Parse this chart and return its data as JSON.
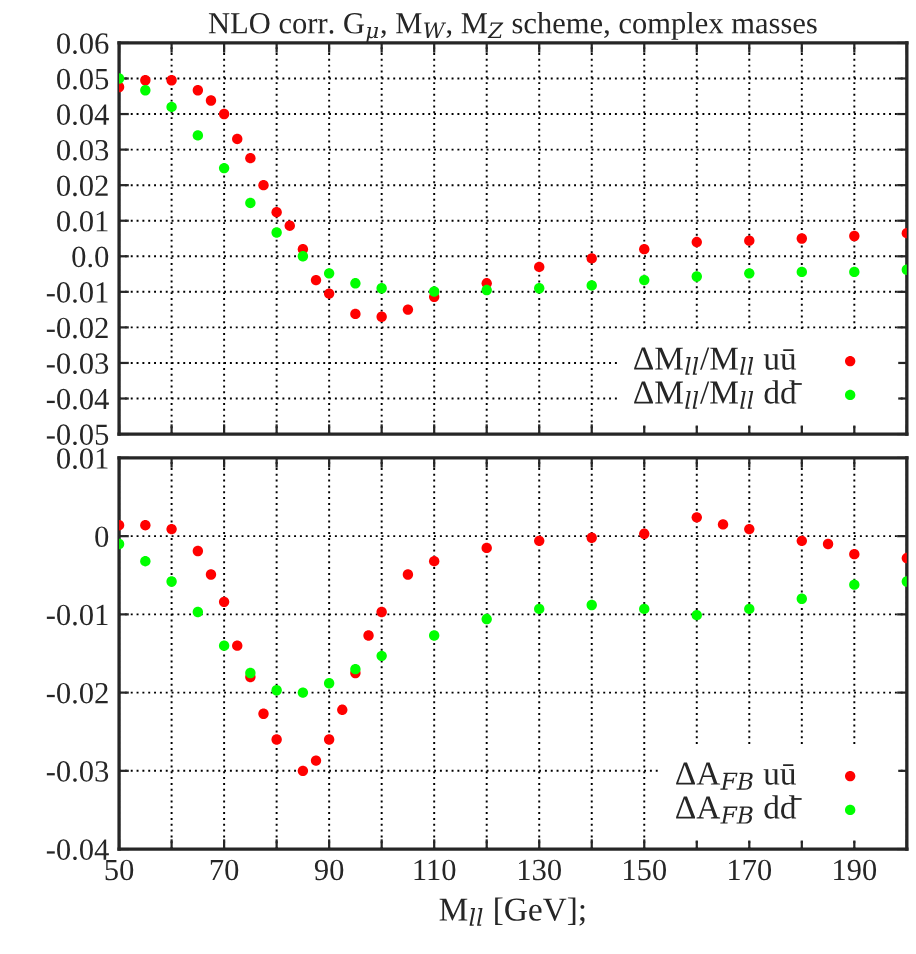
{
  "chart_data": [
    {
      "type": "scatter",
      "title": "NLO corr. G$_{μ}$, M$_{W}$, M$_{Z}$ scheme, complex masses",
      "marker": "circle",
      "grid": true,
      "legend": "bottom right",
      "tick_labels": "y",
      "xlim": [
        50,
        200
      ],
      "xticks": [
        50,
        {
          "value": 60,
          "label": null
        },
        70,
        {
          "value": 80,
          "label": null
        },
        90,
        {
          "value": 100,
          "label": null
        },
        110,
        {
          "value": 120,
          "label": null
        },
        130,
        {
          "value": 140,
          "label": null
        },
        150,
        {
          "value": 160,
          "label": null
        },
        170,
        {
          "value": 180,
          "label": null
        },
        190,
        {
          "value": 200,
          "label": null
        }
      ],
      "ylim": [
        -0.05,
        0.06
      ],
      "yticks": [
        -0.05,
        -0.04,
        -0.03,
        -0.02,
        -0.01,
        {
          "value": 0,
          "label": "0.0"
        },
        0.01,
        0.02,
        0.03,
        0.04,
        0.05,
        0.06
      ],
      "series": [
        {
          "name": "ΔM$_{ll}$/M$_{ll}$ uū",
          "color": "#ff0000",
          "x": [
            50,
            55,
            60,
            65,
            67.5,
            70,
            72.5,
            75,
            77.5,
            80,
            82.5,
            85,
            87.5,
            90,
            95,
            100,
            105,
            110,
            120,
            130,
            140,
            150,
            160,
            170,
            180,
            190,
            200
          ],
          "values": [
            0.0476,
            0.0495,
            0.0495,
            0.0467,
            0.0438,
            0.04,
            0.033,
            0.0276,
            0.02,
            0.0124,
            0.0086,
            0.002,
            -0.0067,
            -0.0105,
            -0.0162,
            -0.017,
            -0.015,
            -0.0114,
            -0.0076,
            -0.003,
            -0.0006,
            0.002,
            0.004,
            0.0044,
            0.005,
            0.0057,
            0.0065
          ]
        },
        {
          "name": "ΔM$_{ll}$/M$_{ll}$ dd̄",
          "color": "#00ff00",
          "x": [
            50,
            55,
            60,
            65,
            70,
            75,
            80,
            85,
            90,
            95,
            100,
            110,
            120,
            130,
            140,
            150,
            160,
            170,
            180,
            190,
            200
          ],
          "values": [
            0.05,
            0.0467,
            0.042,
            0.034,
            0.0248,
            0.015,
            0.0067,
            0.0,
            -0.0048,
            -0.0076,
            -0.009,
            -0.0099,
            -0.0095,
            -0.009,
            -0.0082,
            -0.0067,
            -0.0057,
            -0.0048,
            -0.0044,
            -0.0044,
            -0.0038
          ]
        }
      ]
    },
    {
      "type": "scatter",
      "xlabel": "M$_{ll}$ [GeV];",
      "marker": "circle",
      "grid": true,
      "legend": "bottom right",
      "xlim": [
        50,
        200
      ],
      "xticks": [
        50,
        {
          "value": 60,
          "label": null
        },
        70,
        {
          "value": 80,
          "label": null
        },
        90,
        {
          "value": 100,
          "label": null
        },
        110,
        {
          "value": 120,
          "label": null
        },
        130,
        {
          "value": 140,
          "label": null
        },
        150,
        {
          "value": 160,
          "label": null
        },
        170,
        {
          "value": 180,
          "label": null
        },
        190,
        {
          "value": 200,
          "label": null
        }
      ],
      "ylim": [
        -0.04,
        0.01
      ],
      "yticks": [
        -0.04,
        -0.03,
        -0.02,
        -0.01,
        0,
        0.01
      ],
      "series": [
        {
          "name": "ΔA$_{FB}$ uū",
          "color": "#ff0000",
          "x": [
            50,
            55,
            60,
            65,
            67.5,
            70,
            72.5,
            75,
            77.5,
            80,
            85,
            87.5,
            90,
            92.5,
            95,
            97.5,
            100,
            105,
            110,
            120,
            130,
            140,
            150,
            160,
            165,
            170,
            180,
            185,
            190,
            200
          ],
          "values": [
            0.0014,
            0.0014,
            0.0009,
            -0.0019,
            -0.0049,
            -0.0084,
            -0.014,
            -0.018,
            -0.0227,
            -0.026,
            -0.03,
            -0.0287,
            -0.026,
            -0.0222,
            -0.0175,
            -0.0127,
            -0.0097,
            -0.0049,
            -0.0032,
            -0.0015,
            -0.0006,
            -0.0002,
            0.0003,
            0.0024,
            0.0015,
            0.0009,
            -0.0006,
            -0.001,
            -0.0023,
            -0.0028
          ]
        },
        {
          "name": "ΔA$_{FB}$ dd̄",
          "color": "#00ff00",
          "x": [
            50,
            55,
            60,
            65,
            70,
            75,
            80,
            85,
            90,
            95,
            100,
            110,
            120,
            130,
            140,
            150,
            160,
            170,
            180,
            190,
            200
          ],
          "values": [
            -0.001,
            -0.0032,
            -0.0058,
            -0.0097,
            -0.014,
            -0.0175,
            -0.0197,
            -0.02,
            -0.0188,
            -0.017,
            -0.0153,
            -0.0127,
            -0.0106,
            -0.0093,
            -0.0088,
            -0.0093,
            -0.0101,
            -0.0093,
            -0.008,
            -0.0062,
            -0.0058
          ]
        }
      ]
    }
  ]
}
